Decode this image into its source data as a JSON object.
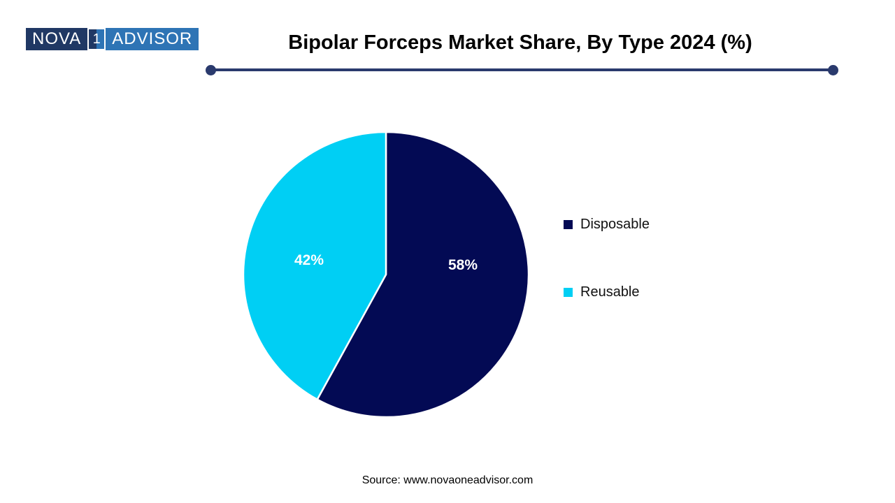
{
  "page": {
    "background": "#ffffff"
  },
  "logo": {
    "left_text": "NOVA",
    "box_digit": "1",
    "right_text": "ADVISOR",
    "left_bg": "#203864",
    "right_bg": "#2E74B5"
  },
  "header": {
    "title": "Bipolar Forceps Market Share, By Type 2024 (%)",
    "divider_color": "#2A3A6D"
  },
  "chart_data": {
    "type": "pie",
    "title": "Bipolar Forceps Market Share, By Type 2024 (%)",
    "categories": [
      "Disposable",
      "Reusable"
    ],
    "values": [
      58,
      42
    ],
    "labels": [
      "58%",
      "42%"
    ],
    "colors": [
      "#030A54",
      "#00CFF4"
    ],
    "start_angle_deg": 0,
    "direction": "clockwise",
    "legend_position": "right",
    "slice_border_color": "#ffffff",
    "label_color": "#ffffff"
  },
  "legend": {
    "items": [
      {
        "label": "Disposable",
        "color": "#030A54"
      },
      {
        "label": "Reusable",
        "color": "#00CFF4"
      }
    ]
  },
  "footer": {
    "source": "Source: www.novaoneadvisor.com"
  }
}
